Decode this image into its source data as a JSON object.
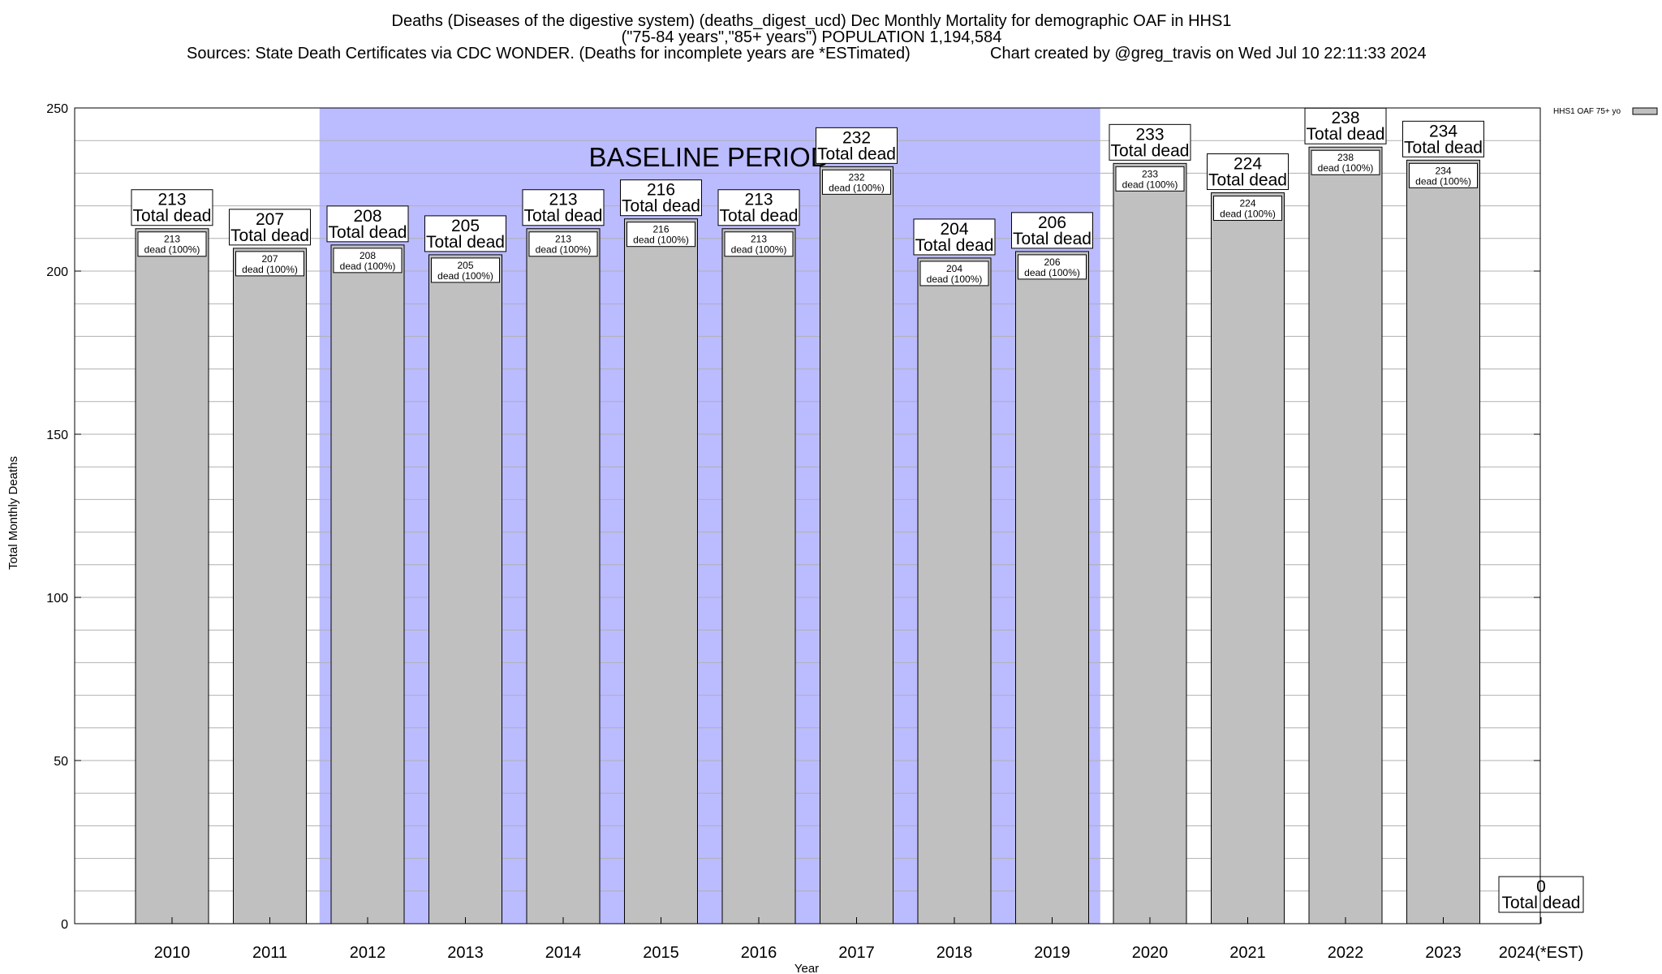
{
  "chart_data": {
    "type": "bar",
    "title_lines": [
      "Deaths (Diseases of the digestive system) (deaths_digest_ucd) Dec Monthly Mortality for demographic OAF in HHS1",
      "(\"75-84 years\",\"85+ years\") POPULATION 1,194,584"
    ],
    "sources_text": "Sources: State Death Certificates via CDC WONDER. (Deaths for incomplete years are *ESTimated)",
    "credit_text": "Chart created by @greg_travis on Wed Jul 10 22:11:33 2024",
    "xlabel": "Year",
    "ylabel": "Total Monthly Deaths",
    "ylim": [
      0,
      250
    ],
    "yticks": [
      "0",
      "50",
      "100",
      "150",
      "200",
      "250"
    ],
    "categories": [
      "2010",
      "2011",
      "2012",
      "2013",
      "2014",
      "2015",
      "2016",
      "2017",
      "2018",
      "2019",
      "2020",
      "2021",
      "2022",
      "2023",
      "2024(*EST)"
    ],
    "values": [
      213,
      207,
      208,
      205,
      213,
      216,
      213,
      232,
      204,
      206,
      233,
      224,
      238,
      234,
      0
    ],
    "total_labels": [
      "213",
      "207",
      "208",
      "205",
      "213",
      "216",
      "213",
      "232",
      "204",
      "206",
      "233",
      "224",
      "238",
      "234",
      "0"
    ],
    "total_suffix": "Total dead",
    "inner_labels": [
      "213",
      "207",
      "208",
      "205",
      "213",
      "216",
      "213",
      "232",
      "204",
      "206",
      "233",
      "224",
      "238",
      "234"
    ],
    "inner_suffix": "dead (100%)",
    "baseline": {
      "label": "BASELINE PERIOD",
      "start_category": "2012",
      "end_category": "2019"
    },
    "legend": {
      "label": "HHS1 OAF 75+ yo",
      "position": "top-right"
    },
    "colors": {
      "bar": "#c0c0c0",
      "baseline": "#bbbbff",
      "grid": "#b0b0b0"
    }
  }
}
